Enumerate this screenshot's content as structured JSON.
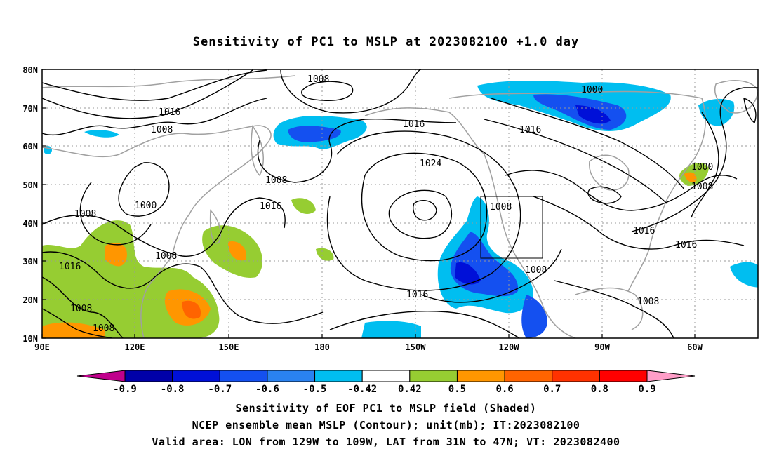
{
  "title": "Sensitivity of PC1 to MSLP at 2023082100 +1.0 day",
  "axes": {
    "lat_labels": [
      "80N",
      "70N",
      "60N",
      "50N",
      "40N",
      "30N",
      "20N",
      "10N"
    ],
    "lon_labels": [
      "90E",
      "120E",
      "150E",
      "180",
      "150W",
      "120W",
      "90W",
      "60W"
    ]
  },
  "contour_labels": [
    {
      "text": "1008"
    },
    {
      "text": "1016"
    },
    {
      "text": "1008"
    },
    {
      "text": "1000"
    },
    {
      "text": "1016"
    },
    {
      "text": "1016"
    },
    {
      "text": "1000"
    },
    {
      "text": "1008"
    },
    {
      "text": "1008"
    },
    {
      "text": "1016"
    },
    {
      "text": "1024"
    },
    {
      "text": "1008"
    },
    {
      "text": "1000"
    },
    {
      "text": "1008"
    },
    {
      "text": "1016"
    },
    {
      "text": "1008"
    },
    {
      "text": "1008"
    },
    {
      "text": "1016"
    },
    {
      "text": "1016"
    },
    {
      "text": "1008"
    },
    {
      "text": "1016"
    },
    {
      "text": "1008"
    },
    {
      "text": "1008"
    }
  ],
  "colorbar": {
    "labels": [
      "-0.9",
      "-0.8",
      "-0.7",
      "-0.6",
      "-0.5",
      "-0.42",
      "0.42",
      "0.5",
      "0.6",
      "0.7",
      "0.8",
      "0.9"
    ],
    "colors": [
      "#c0008c",
      "#0000a8",
      "#0010d8",
      "#1450f0",
      "#2a82f0",
      "#00bef0",
      "#ffffff",
      "#96cd32",
      "#ff9600",
      "#ff6400",
      "#ff3200",
      "#ff0000",
      "#ff9ec8"
    ]
  },
  "captions": {
    "line1": "Sensitivity of EOF PC1 to MSLP field (Shaded)",
    "line2": "NCEP ensemble mean MSLP (Contour); unit(mb); IT:2023082100",
    "line3": "Valid area: LON from 129W to 109W, LAT from 31N to 47N; VT: 2023082400"
  }
}
